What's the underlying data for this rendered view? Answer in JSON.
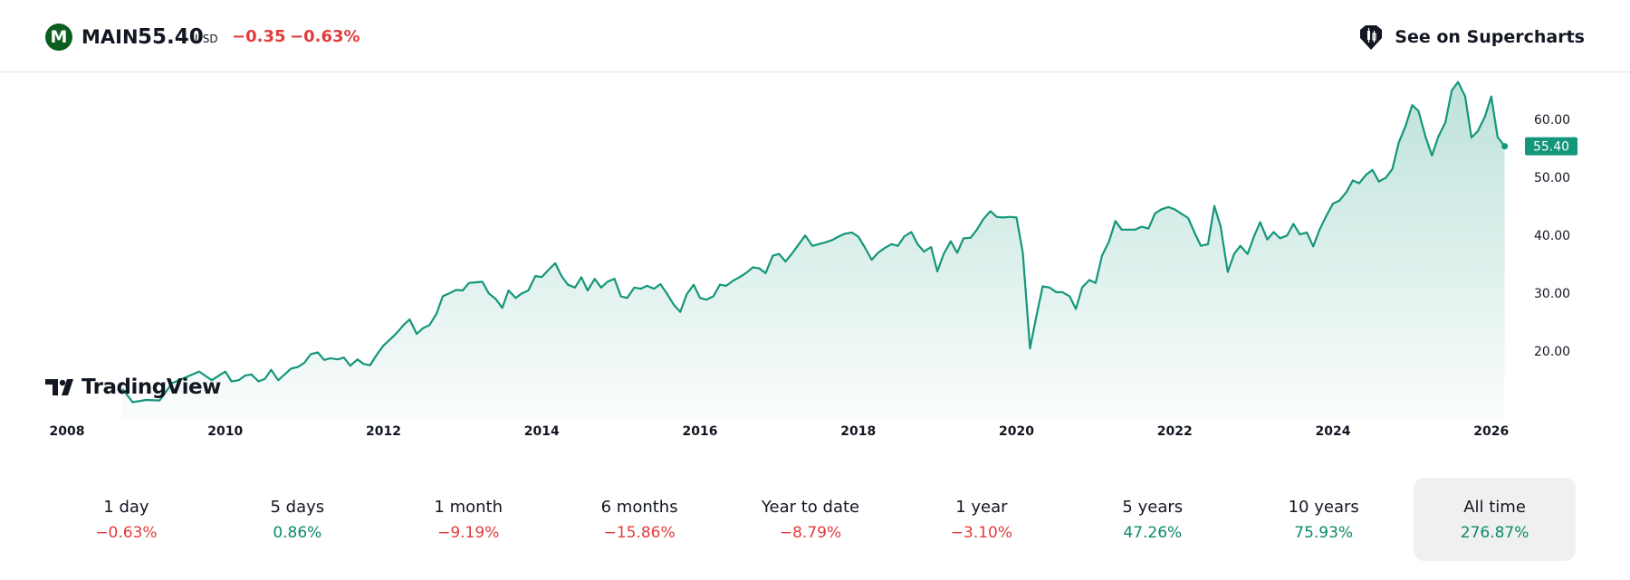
{
  "header": {
    "logo_letter": "M",
    "symbol": "MAIN",
    "price": "55.40",
    "currency": "USD",
    "change": "−0.35",
    "change_percent": "−0.63%",
    "supercharts_label": "See on Supercharts"
  },
  "branding": {
    "tv_logo_text": "TradingView"
  },
  "colors": {
    "line": "#14967a",
    "negative": "#e03c3c",
    "positive": "#0b8a6a",
    "price_tag": "#14967a"
  },
  "chart_data": {
    "type": "area",
    "x_tick_labels": [
      "2008",
      "2010",
      "2012",
      "2014",
      "2016",
      "2018",
      "2020",
      "2022",
      "2024",
      "2026"
    ],
    "y_tick_labels": [
      "20.00",
      "30.00",
      "40.00",
      "50.00",
      "60.00"
    ],
    "y_ticks": [
      20,
      30,
      40,
      50,
      60
    ],
    "ylim": [
      10.5,
      68
    ],
    "xlim": [
      2008.0,
      2026.3
    ],
    "last_price_label": "55.40",
    "last_price": 55.4,
    "grid": false,
    "series": [
      {
        "x": [
          2008.7,
          2008.83,
          2009.0,
          2009.17,
          2009.33,
          2009.5,
          2009.67,
          2009.83,
          2010.0,
          2010.08,
          2010.17,
          2010.25,
          2010.33,
          2010.42,
          2010.5,
          2010.58,
          2010.67,
          2010.75,
          2010.83,
          2010.92,
          2011.0,
          2011.08,
          2011.17,
          2011.25,
          2011.33,
          2011.42,
          2011.5,
          2011.58,
          2011.67,
          2011.75,
          2011.83,
          2011.92,
          2012.0,
          2012.08,
          2012.17,
          2012.25,
          2012.33,
          2012.42,
          2012.5,
          2012.58,
          2012.67,
          2012.75,
          2012.83,
          2012.92,
          2013.0,
          2013.08,
          2013.17,
          2013.25,
          2013.33,
          2013.42,
          2013.5,
          2013.58,
          2013.67,
          2013.75,
          2013.83,
          2013.92,
          2014.0,
          2014.08,
          2014.17,
          2014.25,
          2014.33,
          2014.42,
          2014.5,
          2014.58,
          2014.67,
          2014.75,
          2014.83,
          2014.92,
          2015.0,
          2015.08,
          2015.17,
          2015.25,
          2015.33,
          2015.42,
          2015.5,
          2015.58,
          2015.67,
          2015.75,
          2015.83,
          2015.92,
          2016.0,
          2016.08,
          2016.17,
          2016.25,
          2016.33,
          2016.42,
          2016.5,
          2016.58,
          2016.67,
          2016.75,
          2016.83,
          2016.92,
          2017.0,
          2017.08,
          2017.17,
          2017.25,
          2017.33,
          2017.42,
          2017.5,
          2017.58,
          2017.67,
          2017.75,
          2017.83,
          2017.92,
          2018.0,
          2018.08,
          2018.17,
          2018.25,
          2018.33,
          2018.42,
          2018.5,
          2018.58,
          2018.67,
          2018.75,
          2018.83,
          2018.92,
          2019.0,
          2019.08,
          2019.17,
          2019.25,
          2019.33,
          2019.42,
          2019.5,
          2019.58,
          2019.67,
          2019.75,
          2019.83,
          2019.92,
          2020.0,
          2020.08,
          2020.17,
          2020.25,
          2020.33,
          2020.42,
          2020.5,
          2020.58,
          2020.67,
          2020.75,
          2020.83,
          2020.92,
          2021.0,
          2021.08,
          2021.17,
          2021.25,
          2021.33,
          2021.42,
          2021.5,
          2021.58,
          2021.67,
          2021.75,
          2021.83,
          2021.92,
          2022.0,
          2022.08,
          2022.17,
          2022.25,
          2022.33,
          2022.42,
          2022.5,
          2022.58,
          2022.67,
          2022.75,
          2022.83,
          2022.92,
          2023.0,
          2023.08,
          2023.17,
          2023.25,
          2023.33,
          2023.42,
          2023.5,
          2023.58,
          2023.67,
          2023.75,
          2023.83,
          2023.92,
          2024.0,
          2024.08,
          2024.17,
          2024.25,
          2024.33,
          2024.42,
          2024.5,
          2024.58,
          2024.67,
          2024.75,
          2024.83,
          2024.92,
          2025.0,
          2025.08,
          2025.17,
          2025.25,
          2025.33,
          2025.42,
          2025.5,
          2025.58,
          2025.67,
          2025.75,
          2025.83,
          2025.92,
          2026.0,
          2026.08,
          2026.17
        ],
        "values": [
          13.5,
          11.2,
          11.6,
          11.5,
          14.5,
          15.5,
          16.5,
          15.0,
          16.5,
          14.8,
          15.0,
          15.8,
          16.0,
          14.8,
          15.2,
          16.8,
          15.0,
          16.0,
          17.0,
          17.3,
          18.0,
          19.5,
          19.8,
          18.5,
          18.8,
          18.6,
          18.9,
          17.5,
          18.6,
          17.8,
          17.6,
          19.5,
          21.0,
          22.0,
          23.2,
          24.5,
          25.5,
          23.0,
          24.0,
          24.5,
          26.5,
          29.5,
          30.0,
          30.6,
          30.5,
          31.8,
          31.9,
          32.0,
          30.0,
          29.0,
          27.5,
          30.5,
          29.2,
          30.0,
          30.5,
          33.0,
          32.8,
          34.0,
          35.2,
          33.0,
          31.5,
          31.0,
          32.8,
          30.5,
          32.5,
          31.0,
          32.0,
          32.5,
          29.5,
          29.2,
          31.0,
          30.8,
          31.3,
          30.8,
          31.6,
          30.0,
          28.0,
          26.8,
          29.8,
          31.5,
          29.2,
          28.9,
          29.5,
          31.5,
          31.3,
          32.2,
          32.8,
          33.5,
          34.5,
          34.3,
          33.5,
          36.5,
          36.8,
          35.5,
          37.0,
          38.5,
          40.0,
          38.2,
          38.5,
          38.8,
          39.2,
          39.8,
          40.3,
          40.5,
          39.8,
          38.0,
          35.8,
          37.0,
          37.8,
          38.5,
          38.2,
          39.8,
          40.6,
          38.5,
          37.2,
          38.0,
          33.8,
          36.8,
          39.0,
          37.0,
          39.5,
          39.6,
          41.0,
          42.8,
          44.2,
          43.2,
          43.1,
          43.2,
          43.1,
          37.0,
          20.5,
          26.0,
          31.2,
          31.0,
          30.2,
          30.2,
          29.5,
          27.3,
          31.0,
          32.3,
          31.8,
          36.5,
          39.0,
          42.5,
          41.0,
          41.0,
          41.0,
          41.5,
          41.2,
          43.8,
          44.5,
          44.9,
          44.5,
          43.8,
          43.0,
          40.5,
          38.2,
          38.5,
          45.1,
          41.5,
          33.7,
          36.8,
          38.2,
          36.8,
          39.8,
          42.3,
          39.3,
          40.6,
          39.5,
          40.0,
          42.0,
          40.2,
          40.5,
          38.1,
          41.0,
          43.5,
          45.5,
          46.0,
          47.5,
          49.5,
          49.0,
          50.5,
          51.3,
          49.3,
          50.0,
          51.5,
          56.0,
          59.0,
          62.5,
          61.5,
          57.0,
          53.8,
          57.0,
          59.5,
          65.0,
          66.5,
          64.0,
          56.9,
          58.0,
          60.5,
          64.0,
          57.0,
          55.4
        ]
      }
    ]
  },
  "periods": [
    {
      "label": "1 day",
      "value": "−0.63%",
      "sign": "neg",
      "active": false
    },
    {
      "label": "5 days",
      "value": "0.86%",
      "sign": "pos",
      "active": false
    },
    {
      "label": "1 month",
      "value": "−9.19%",
      "sign": "neg",
      "active": false
    },
    {
      "label": "6 months",
      "value": "−15.86%",
      "sign": "neg",
      "active": false
    },
    {
      "label": "Year to date",
      "value": "−8.79%",
      "sign": "neg",
      "active": false
    },
    {
      "label": "1 year",
      "value": "−3.10%",
      "sign": "neg",
      "active": false
    },
    {
      "label": "5 years",
      "value": "47.26%",
      "sign": "pos",
      "active": false
    },
    {
      "label": "10 years",
      "value": "75.93%",
      "sign": "pos",
      "active": false
    },
    {
      "label": "All time",
      "value": "276.87%",
      "sign": "pos",
      "active": true
    }
  ]
}
